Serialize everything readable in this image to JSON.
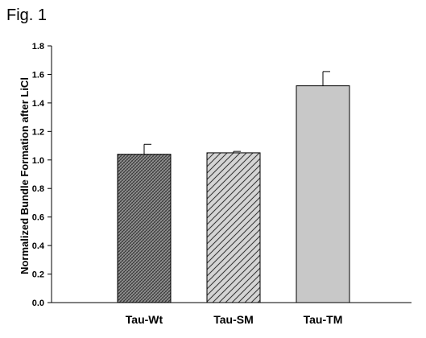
{
  "figure_label": "Fig. 1",
  "chart_data": {
    "type": "bar",
    "categories": [
      "Tau-Wt",
      "Tau-SM",
      "Tau-TM"
    ],
    "values": [
      1.04,
      1.05,
      1.52
    ],
    "errors": [
      0.07,
      0.01,
      0.1
    ],
    "fills": [
      "crosshatch-dense",
      "diagonal-hatch",
      "solid"
    ],
    "bar_color": "#c8c8c8",
    "edge_color": "#000000",
    "ylabel": "Normalized Bundle Formation after LiCl",
    "xlabel": "",
    "ylim": [
      0,
      1.8
    ],
    "yticks": [
      "0.0",
      "0.2",
      "0.4",
      "0.6",
      "0.8",
      "1.0",
      "1.2",
      "1.4",
      "1.6",
      "1.8"
    ],
    "grid": false
  }
}
